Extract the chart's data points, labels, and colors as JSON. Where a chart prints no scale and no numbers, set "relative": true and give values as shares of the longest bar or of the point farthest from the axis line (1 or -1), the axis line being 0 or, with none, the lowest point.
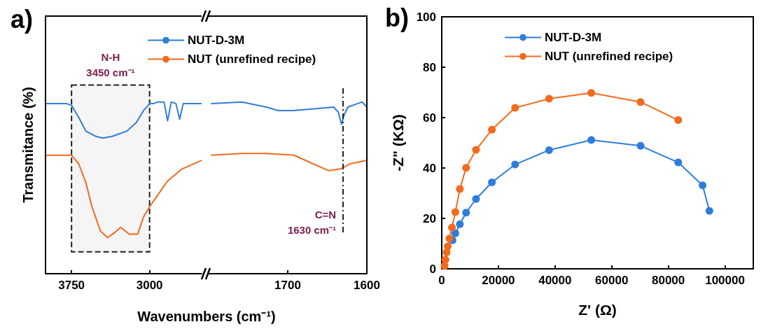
{
  "chart_data": [
    {
      "type": "line",
      "title": "a)",
      "xlabel": "Wavenumbers (cm⁻¹)",
      "ylabel": "Transmitance (%)",
      "relative": true,
      "xlim": [
        4000,
        2500
      ],
      "xticks": [
        3750,
        3000
      ],
      "legend": "top right",
      "marker": "none",
      "grid": false,
      "series": [
        {
          "name": "NUT-D-3M",
          "color": "#2f7ddb",
          "x": [
            4000,
            3796,
            3750,
            3681,
            3612,
            3519,
            3450,
            3358,
            3219,
            3127,
            3058,
            3000,
            2965,
            2919,
            2861,
            2827,
            2792,
            2746,
            2711,
            2677,
            2596,
            2500
          ],
          "values": [
            0.99,
            0.99,
            0.98,
            0.91,
            0.83,
            0.8,
            0.79,
            0.8,
            0.83,
            0.88,
            0.95,
            0.99,
            0.99,
            1.0,
            1.0,
            0.89,
            1.0,
            0.99,
            0.9,
            0.99,
            0.99,
            0.99
          ]
        },
        {
          "name": "NUT (unrefined recipe)",
          "color": "#f26b1d",
          "x": [
            4000,
            3750,
            3681,
            3612,
            3554,
            3473,
            3404,
            3335,
            3277,
            3196,
            3115,
            3058,
            3000,
            2919,
            2827,
            2688,
            2500
          ],
          "values": [
            0.69,
            0.69,
            0.64,
            0.53,
            0.39,
            0.25,
            0.21,
            0.24,
            0.27,
            0.23,
            0.23,
            0.33,
            0.39,
            0.46,
            0.54,
            0.61,
            0.66
          ]
        }
      ],
      "bands": [
        {
          "axis": "x",
          "from": 3750,
          "to": 3000,
          "label": "N-H\n3450 cm⁻¹",
          "color": "#222222"
        }
      ]
    },
    {
      "type": "line",
      "relative": true,
      "xlim": [
        1800,
        1600
      ],
      "xticks": [
        1700,
        1600
      ],
      "marker": "none",
      "grid": false,
      "series": [
        {
          "color": "#2f7ddb",
          "x": [
            1797,
            1758,
            1727,
            1712,
            1694,
            1667,
            1642,
            1636,
            1632,
            1629,
            1624,
            1606,
            1600
          ],
          "values": [
            0.99,
            1.0,
            0.97,
            0.95,
            0.95,
            0.96,
            0.97,
            0.94,
            0.87,
            0.92,
            0.97,
            1.0,
            0.97
          ]
        },
        {
          "color": "#f26b1d",
          "x": [
            1797,
            1758,
            1727,
            1692,
            1673,
            1648,
            1633,
            1621,
            1600
          ],
          "values": [
            0.69,
            0.7,
            0.7,
            0.69,
            0.65,
            0.6,
            0.61,
            0.64,
            0.66
          ]
        }
      ],
      "ref_lines": [
        {
          "axis": "x",
          "value": 1630,
          "label": "C=N\n1630 cm⁻¹",
          "color": "#222222",
          "line_style": "dashed"
        }
      ]
    },
    {
      "type": "line",
      "title": "b)",
      "xlabel": "Z' (Ω)",
      "ylabel": "-Z\" (KΩ)",
      "xlim": [
        0,
        110000
      ],
      "xticks": [
        0,
        20000,
        40000,
        60000,
        80000,
        100000
      ],
      "ylim": [
        0,
        100
      ],
      "yticks": [
        0,
        20,
        40,
        60,
        80,
        100
      ],
      "legend": "top right",
      "marker": "circle",
      "grid": false,
      "series": [
        {
          "name": "NUT-D-3M",
          "color": "#2f7ddb",
          "x": [
            3800,
            4800,
            6400,
            8600,
            12100,
            17700,
            25900,
            37900,
            52800,
            70200,
            83500,
            92100,
            94500
          ],
          "values": [
            11.3,
            14.1,
            17.7,
            22.3,
            27.7,
            34.3,
            41.4,
            47.1,
            51.1,
            48.8,
            42.2,
            33.1,
            23.0
          ]
        },
        {
          "name": "NUT (unrefined recipe)",
          "color": "#f26b1d",
          "x": [
            1000,
            1300,
            1700,
            2100,
            2700,
            3600,
            4800,
            6400,
            8600,
            12100,
            17700,
            25900,
            37900,
            52800,
            70200,
            83500
          ],
          "values": [
            1.2,
            3.6,
            6.5,
            8.9,
            12.0,
            16.4,
            22.5,
            31.7,
            40.1,
            47.2,
            55.2,
            63.9,
            67.5,
            69.8,
            66.2,
            59.0
          ]
        }
      ]
    }
  ]
}
